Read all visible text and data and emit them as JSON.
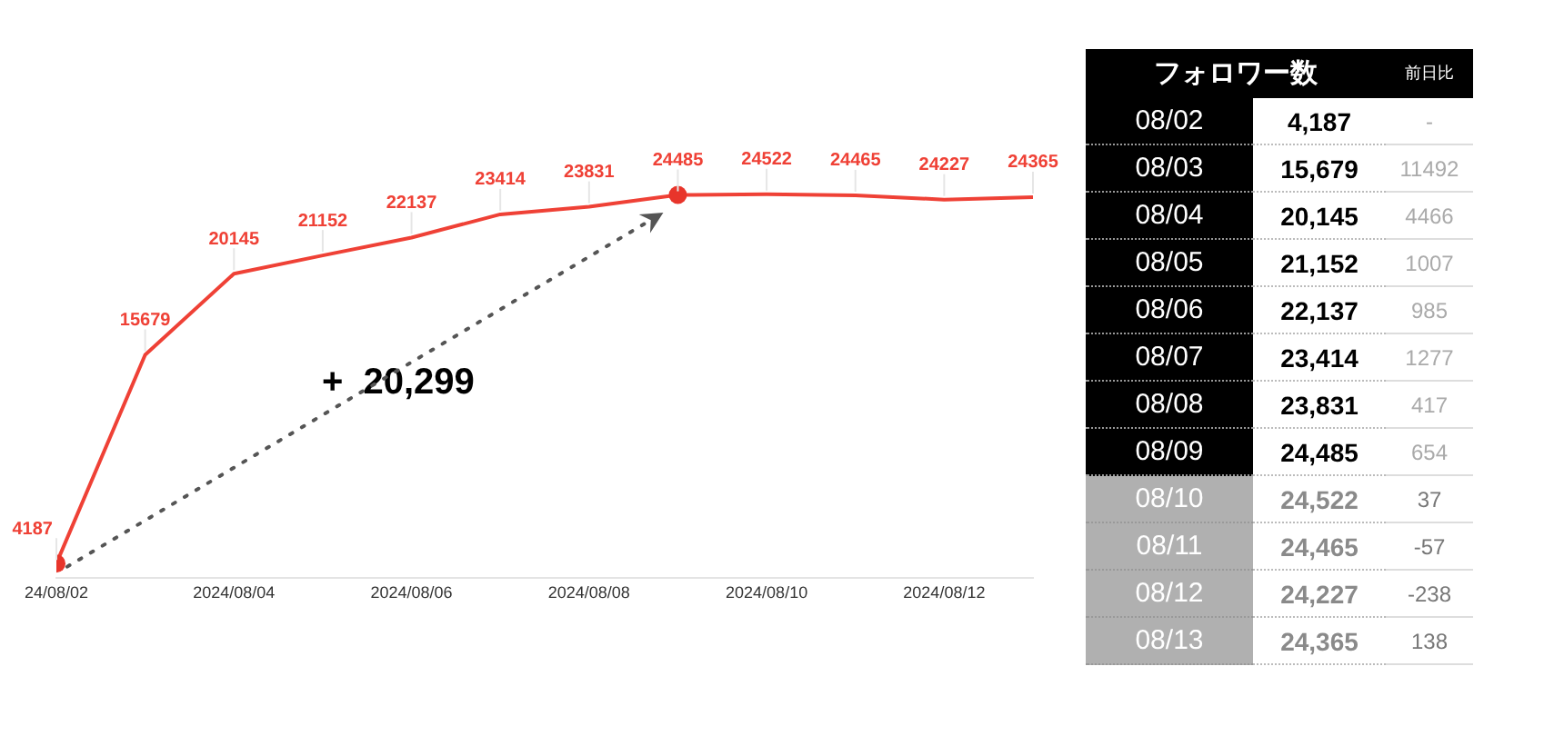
{
  "chart_data": [
    {
      "type": "line",
      "x": [
        "2024-08-02",
        "2024-08-03",
        "2024-08-04",
        "2024-08-05",
        "2024-08-06",
        "2024-08-07",
        "2024-08-08",
        "2024-08-09",
        "2024-08-10",
        "2024-08-11",
        "2024-08-12",
        "2024-08-13"
      ],
      "series": [
        {
          "color": "#ef4136",
          "marker": "none",
          "values": [
            4187,
            15679,
            20145,
            21152,
            22137,
            23414,
            23831,
            24485,
            24522,
            24465,
            24227,
            24365
          ],
          "value_labels": [
            "4187",
            "15679",
            "20145",
            "21152",
            "22137",
            "23414",
            "23831",
            "24485",
            "24522",
            "24465",
            "24227",
            "24365"
          ]
        },
        {
          "type": "scatter",
          "color": "#e8352b",
          "marker": "circle",
          "x": [
            "2024-08-02",
            "2024-08-09"
          ],
          "values": [
            4187,
            24485
          ]
        }
      ],
      "xticks": [
        {
          "value": "2024-08-02",
          "label": "24/08/02"
        },
        {
          "value": "2024-08-04",
          "label": "2024/08/04"
        },
        {
          "value": "2024-08-06",
          "label": "2024/08/06"
        },
        {
          "value": "2024-08-08",
          "label": "2024/08/08"
        },
        {
          "value": "2024-08-10",
          "label": "2024/08/10"
        },
        {
          "value": "2024-08-12",
          "label": "2024/08/12"
        }
      ],
      "xlim": [
        "2024-08-02",
        "2024-08-13"
      ],
      "tick_labels": "x",
      "grid": false,
      "legend": false,
      "annotations": [
        "+  20,299"
      ]
    },
    {
      "type": "other",
      "title": "フォロワー数",
      "categories": [
        "08/02",
        "08/03",
        "08/04",
        "08/05",
        "08/06",
        "08/07",
        "08/08",
        "08/09",
        "08/10",
        "08/11",
        "08/12",
        "08/13"
      ],
      "series": [
        {
          "values": [
            4187,
            15679,
            20145,
            21152,
            22137,
            23414,
            23831,
            24485,
            24522,
            24465,
            24227,
            24365
          ],
          "value_labels": [
            "4,187",
            "15,679",
            "20,145",
            "21,152",
            "22,137",
            "23,414",
            "23,831",
            "24,485",
            "24,522",
            "24,465",
            "24,227",
            "24,365"
          ]
        },
        {
          "name": "前日比",
          "values": [
            null,
            11492,
            4466,
            1007,
            985,
            1277,
            417,
            654,
            37,
            -57,
            -238,
            138
          ],
          "value_labels": [
            "-",
            "11492",
            "4466",
            "1007",
            "985",
            "1277",
            "417",
            "654",
            "37",
            "-57",
            "-238",
            "138"
          ]
        }
      ]
    }
  ]
}
